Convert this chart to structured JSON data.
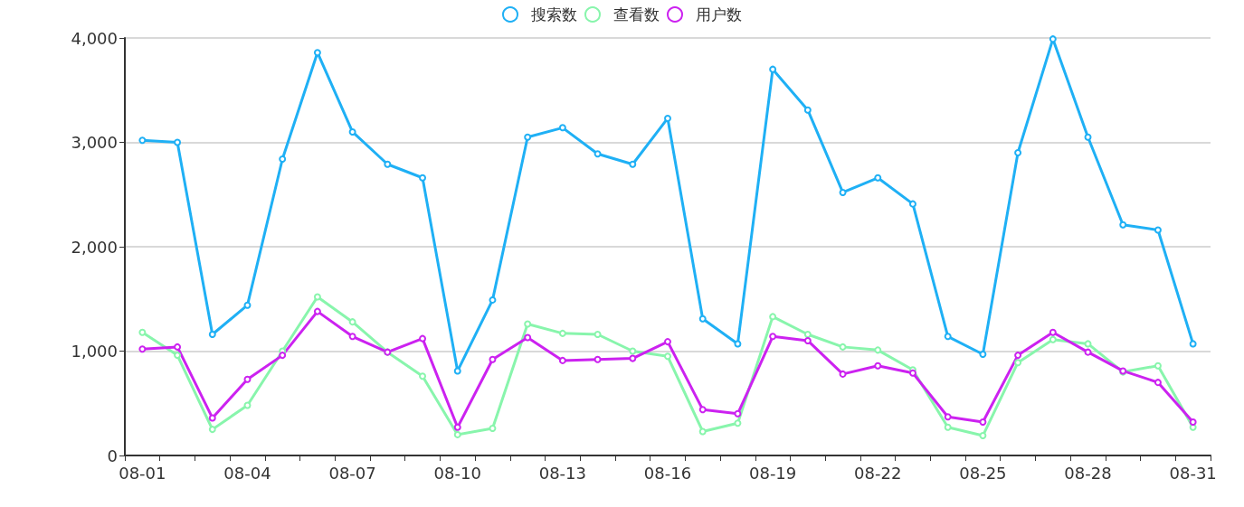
{
  "chart_data": {
    "type": "line",
    "categories": [
      "08-01",
      null,
      null,
      "08-04",
      null,
      null,
      "08-07",
      null,
      null,
      "08-10",
      null,
      null,
      "08-13",
      null,
      null,
      "08-16",
      null,
      null,
      "08-19",
      null,
      null,
      "08-22",
      null,
      null,
      "08-25",
      null,
      null,
      "08-28",
      null,
      null,
      "08-31"
    ],
    "series": [
      {
        "name": "搜索数",
        "color": "#1fb0f5",
        "values": [
          3020,
          3000,
          1160,
          1440,
          2840,
          3860,
          3100,
          2790,
          2660,
          810,
          1490,
          3050,
          3140,
          2890,
          2790,
          3230,
          1310,
          1070,
          3700,
          3310,
          2520,
          2660,
          2410,
          1140,
          970,
          2900,
          3990,
          3050,
          2210,
          2160,
          1070
        ]
      },
      {
        "name": "查看数",
        "color": "#88f5ac",
        "values": [
          1180,
          960,
          250,
          480,
          1000,
          1520,
          1280,
          990,
          760,
          200,
          260,
          1260,
          1170,
          1160,
          1000,
          950,
          230,
          310,
          1330,
          1160,
          1040,
          1010,
          820,
          270,
          190,
          890,
          1110,
          1070,
          800,
          860,
          270
        ]
      },
      {
        "name": "用户数",
        "color": "#cc22f0",
        "values": [
          1020,
          1040,
          360,
          730,
          960,
          1380,
          1140,
          990,
          1120,
          270,
          920,
          1130,
          910,
          920,
          930,
          1090,
          440,
          400,
          1140,
          1100,
          780,
          860,
          790,
          370,
          320,
          960,
          1180,
          990,
          810,
          700,
          320
        ]
      }
    ],
    "ylim": [
      0,
      4000
    ],
    "yticks": [
      0,
      {
        "value": 1000,
        "label": "1,000"
      },
      {
        "value": 2000,
        "label": "2,000"
      },
      {
        "value": 3000,
        "label": "3,000"
      },
      {
        "value": 4000,
        "label": "4,000"
      }
    ],
    "grid": "y",
    "legend": "top",
    "marker": "circle",
    "line_style": "solid"
  }
}
